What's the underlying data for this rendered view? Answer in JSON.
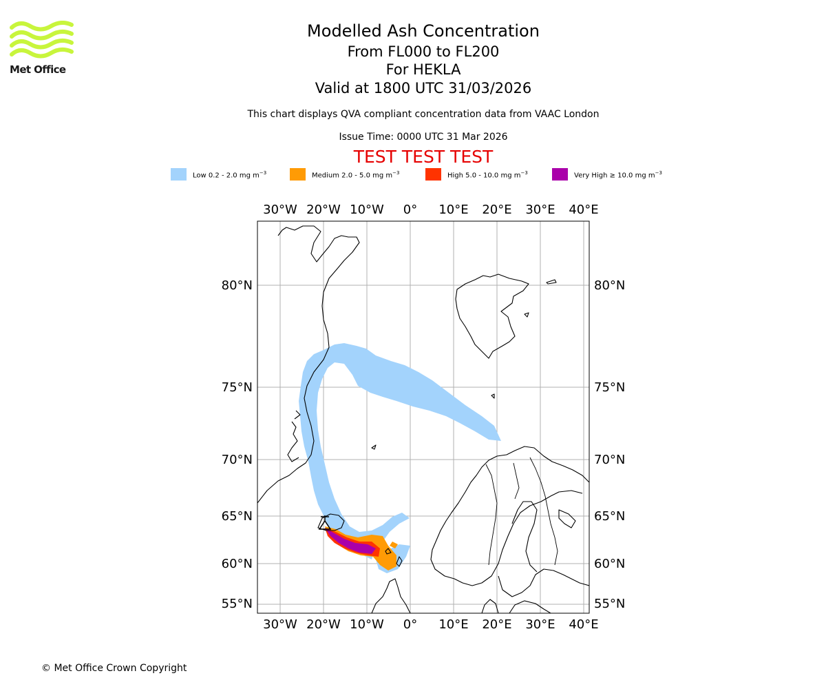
{
  "header": {
    "logo_text": "Met Office",
    "title": "Modelled Ash Concentration",
    "flight_levels": "From FL000 to FL200",
    "volcano": "For HEKLA",
    "valid_time": "Valid at 1800 UTC 31/03/2026",
    "description": "This chart displays QVA compliant concentration data from VAAC London",
    "issue_time": "Issue Time: 0000 UTC 31 Mar 2026",
    "test_banner": "TEST TEST TEST"
  },
  "legend": [
    {
      "label": "Low 0.2 - 2.0 mg m",
      "exp": "−3",
      "color": "#a3d3fc"
    },
    {
      "label": "Medium 2.0 - 5.0 mg m",
      "exp": "−3",
      "color": "#ff9b05"
    },
    {
      "label": "High 5.0 - 10.0 mg m",
      "exp": "−3",
      "color": "#ff3300"
    },
    {
      "label": "Very High ≥ 10.0 mg m",
      "exp": "−3",
      "color": "#aa00aa"
    }
  ],
  "map": {
    "longitude_labels": [
      "30°W",
      "20°W",
      "10°W",
      "0°",
      "10°E",
      "20°E",
      "30°E",
      "40°E"
    ],
    "latitude_labels": [
      "80°N",
      "75°N",
      "70°N",
      "65°N",
      "60°N",
      "55°N"
    ],
    "grid_color": "#b0b0b0"
  },
  "footer": {
    "copyright": "© Met Office Crown Copyright"
  }
}
